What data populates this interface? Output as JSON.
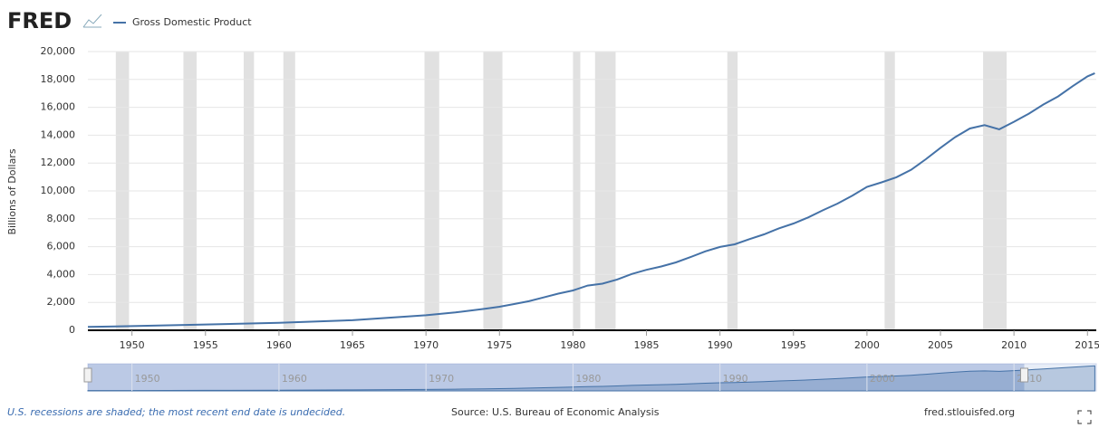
{
  "chart_data": {
    "type": "line",
    "logo": "FRED",
    "ylabel": "Billions of Dollars",
    "note": "U.S. recessions are shaded; the most recent end date is undecided.",
    "source": "Source: U.S. Bureau of Economic Analysis",
    "site": "fred.stlouisfed.org",
    "x": [
      1947,
      1950,
      1955,
      1960,
      1965,
      1970,
      1972,
      1974,
      1975,
      1976,
      1977,
      1978,
      1979,
      1980,
      1981,
      1982,
      1983,
      1984,
      1985,
      1986,
      1987,
      1988,
      1989,
      1990,
      1991,
      1992,
      1993,
      1994,
      1995,
      1996,
      1997,
      1998,
      1999,
      2000,
      2001,
      2002,
      2003,
      2004,
      2005,
      2006,
      2007,
      2008,
      2009,
      2010,
      2011,
      2012,
      2013,
      2014,
      2015,
      2015.5
    ],
    "series": [
      {
        "name": "Gross Domestic Product",
        "color": "#4572a7",
        "values": [
          244,
          300,
          415,
          540,
          720,
          1075,
          1280,
          1545,
          1690,
          1880,
          2085,
          2355,
          2630,
          2860,
          3210,
          3345,
          3640,
          4040,
          4340,
          4580,
          4870,
          5250,
          5660,
          5980,
          6170,
          6540,
          6880,
          7310,
          7660,
          8100,
          8610,
          9090,
          9660,
          10290,
          10620,
          10980,
          11510,
          12270,
          13090,
          13860,
          14480,
          14720,
          14420,
          14960,
          15540,
          16200,
          16780,
          17520,
          18220,
          18450
        ]
      }
    ],
    "recessions": [
      [
        1948.9,
        1949.8
      ],
      [
        1953.5,
        1954.4
      ],
      [
        1957.6,
        1958.3
      ],
      [
        1960.3,
        1961.1
      ],
      [
        1969.9,
        1970.9
      ],
      [
        1973.9,
        1975.2
      ],
      [
        1980.0,
        1980.5
      ],
      [
        1981.5,
        1982.9
      ],
      [
        1990.5,
        1991.2
      ],
      [
        2001.2,
        2001.9
      ],
      [
        2007.9,
        2009.5
      ]
    ],
    "recession_color": "#e1e1e1",
    "xlim": [
      1947,
      2015.6
    ],
    "xticks": [
      1950,
      1955,
      1960,
      1965,
      1970,
      1975,
      1980,
      1985,
      1990,
      1995,
      2000,
      2005,
      2010,
      2015
    ],
    "ylim": [
      0,
      20000
    ],
    "yticks": [
      0,
      {
        "value": 2000,
        "label": "2,000"
      },
      {
        "value": 4000,
        "label": "4,000"
      },
      {
        "value": 6000,
        "label": "6,000"
      },
      {
        "value": 8000,
        "label": "8,000"
      },
      {
        "value": 10000,
        "label": "10,000"
      },
      {
        "value": 12000,
        "label": "12,000"
      },
      {
        "value": 14000,
        "label": "14,000"
      },
      {
        "value": 16000,
        "label": "16,000"
      },
      {
        "value": 18000,
        "label": "18,000"
      },
      {
        "value": 20000,
        "label": "20,000"
      }
    ],
    "grid": true,
    "navigator": {
      "xticks": [
        1950,
        1960,
        1970,
        1980,
        1990,
        2000,
        2010
      ],
      "selection": [
        1947,
        2010.7
      ]
    }
  }
}
